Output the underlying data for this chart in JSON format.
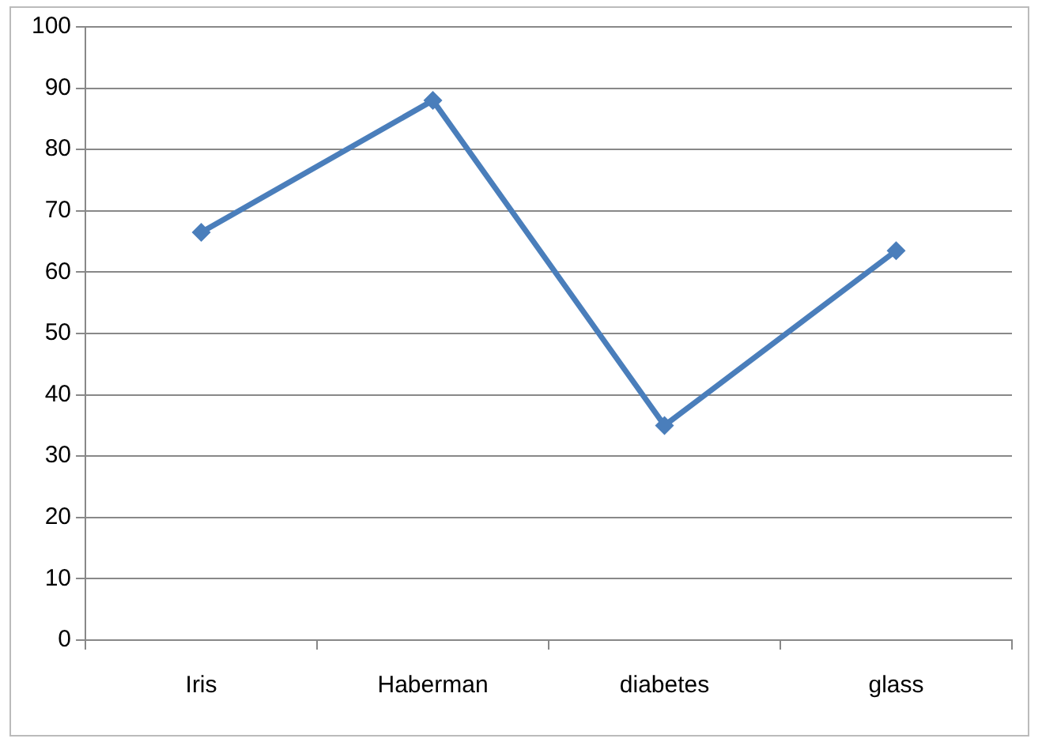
{
  "chart_data": {
    "type": "line",
    "categories": [
      "Iris",
      "Haberman",
      "diabetes",
      "glass"
    ],
    "series": [
      {
        "color": "#4a7ebb",
        "values": [
          66.5,
          88,
          35,
          63.5
        ]
      }
    ],
    "ylim": [
      0,
      100
    ],
    "yticks": [
      0,
      10,
      20,
      30,
      40,
      50,
      60,
      70,
      80,
      90,
      100
    ],
    "grid": "y",
    "legend": false,
    "marker": "diamond",
    "line_style": "solid"
  }
}
